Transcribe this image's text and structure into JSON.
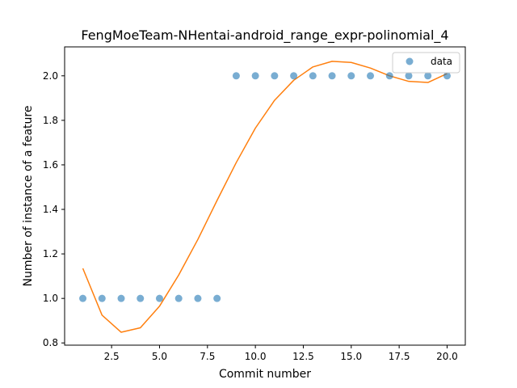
{
  "chart_data": {
    "type": "scatter",
    "title": "FengMoeTeam-NHentai-android_range_expr-polinomial_4",
    "xlabel": "Commit number",
    "ylabel": "Number of instance of a feature",
    "xlim": [
      0.05,
      20.95
    ],
    "ylim": [
      0.79,
      2.13
    ],
    "xticks": [
      2.5,
      5.0,
      7.5,
      10.0,
      12.5,
      15.0,
      17.5,
      20.0
    ],
    "xtick_labels": [
      "2.5",
      "5.0",
      "7.5",
      "10.0",
      "12.5",
      "15.0",
      "17.5",
      "20.0"
    ],
    "yticks": [
      0.8,
      1.0,
      1.2,
      1.4,
      1.6,
      1.8,
      2.0
    ],
    "ytick_labels": [
      "0.8",
      "1.0",
      "1.2",
      "1.4",
      "1.6",
      "1.8",
      "2.0"
    ],
    "grid": false,
    "legend_position": "top-right",
    "series": [
      {
        "name": "data",
        "kind": "scatter",
        "color": "#1f77b4",
        "x": [
          1,
          2,
          3,
          4,
          5,
          6,
          7,
          8,
          9,
          10,
          11,
          12,
          13,
          14,
          15,
          16,
          17,
          18,
          19,
          20
        ],
        "y": [
          1,
          1,
          1,
          1,
          1,
          1,
          1,
          1,
          2,
          2,
          2,
          2,
          2,
          2,
          2,
          2,
          2,
          2,
          2,
          2
        ]
      },
      {
        "kind": "line",
        "color": "#ff7f0e",
        "x": [
          1,
          2,
          3,
          4,
          5,
          6,
          7,
          8,
          9,
          10,
          11,
          12,
          13,
          14,
          15,
          16,
          17,
          18,
          19,
          20
        ],
        "y": [
          1.135,
          0.925,
          0.848,
          0.868,
          0.965,
          1.105,
          1.265,
          1.44,
          1.61,
          1.765,
          1.89,
          1.98,
          2.04,
          2.065,
          2.06,
          2.035,
          2.0,
          1.975,
          1.97,
          2.01
        ]
      }
    ]
  }
}
